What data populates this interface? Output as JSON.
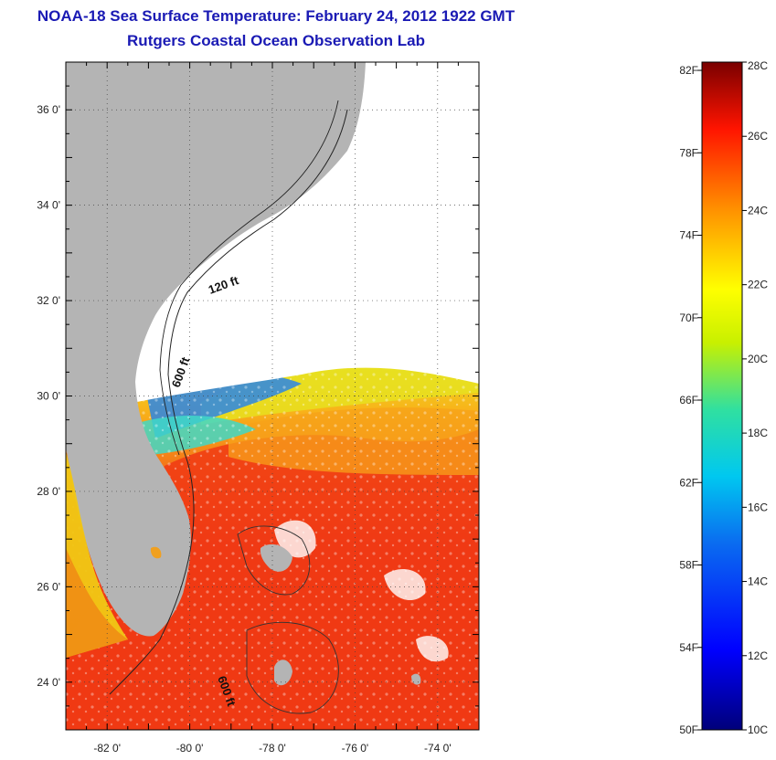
{
  "header": {
    "title": "NOAA-18 Sea Surface Temperature:  February 24, 2012 1922 GMT",
    "subtitle": "Rutgers Coastal Ocean Observation Lab"
  },
  "map": {
    "lon_range": [
      -83,
      -73
    ],
    "lat_range": [
      23,
      37
    ],
    "x_ticks": [
      {
        "value": -82,
        "label": "-82 0'"
      },
      {
        "value": -80,
        "label": "-80 0'"
      },
      {
        "value": -78,
        "label": "-78 0'"
      },
      {
        "value": -76,
        "label": "-76 0'"
      },
      {
        "value": -74,
        "label": "-74 0'"
      }
    ],
    "y_ticks": [
      {
        "value": 36,
        "label": "36 0'"
      },
      {
        "value": 34,
        "label": "34 0'"
      },
      {
        "value": 32,
        "label": "32 0'"
      },
      {
        "value": 30,
        "label": "30 0'"
      },
      {
        "value": 28,
        "label": "28 0'"
      },
      {
        "value": 26,
        "label": "26 0'"
      },
      {
        "value": 24,
        "label": "24 0'"
      }
    ],
    "contour_labels": [
      "120 ft",
      "600 ft",
      "600 ft"
    ],
    "land_color": "#b4b4b4",
    "cloud_color": "#ffffff"
  },
  "colorbar": {
    "fahrenheit_labels": [
      "82F",
      "78F",
      "74F",
      "70F",
      "66F",
      "62F",
      "58F",
      "54F",
      "50F"
    ],
    "celsius_labels": [
      "28C",
      "26C",
      "24C",
      "22C",
      "20C",
      "18C",
      "16C",
      "14C",
      "12C",
      "10C"
    ],
    "range_c": [
      10,
      28
    ]
  }
}
